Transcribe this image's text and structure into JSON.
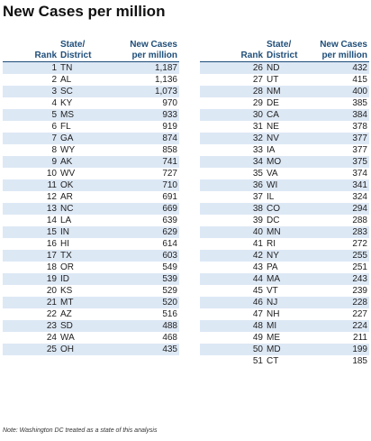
{
  "title": "New Cases per million",
  "headers": {
    "rank": "Rank",
    "state_line1": "State/",
    "state_line2": "District",
    "value_line1": "New Cases",
    "value_line2": "per million"
  },
  "left_rows": [
    {
      "rank": "1",
      "state": "TN",
      "value": "1,187"
    },
    {
      "rank": "2",
      "state": "AL",
      "value": "1,136"
    },
    {
      "rank": "3",
      "state": "SC",
      "value": "1,073"
    },
    {
      "rank": "4",
      "state": "KY",
      "value": "970"
    },
    {
      "rank": "5",
      "state": "MS",
      "value": "933"
    },
    {
      "rank": "6",
      "state": "FL",
      "value": "919"
    },
    {
      "rank": "7",
      "state": "GA",
      "value": "874"
    },
    {
      "rank": "8",
      "state": "WY",
      "value": "858"
    },
    {
      "rank": "9",
      "state": "AK",
      "value": "741"
    },
    {
      "rank": "10",
      "state": "WV",
      "value": "727"
    },
    {
      "rank": "11",
      "state": "OK",
      "value": "710"
    },
    {
      "rank": "12",
      "state": "AR",
      "value": "691"
    },
    {
      "rank": "13",
      "state": "NC",
      "value": "669"
    },
    {
      "rank": "14",
      "state": "LA",
      "value": "639"
    },
    {
      "rank": "15",
      "state": "IN",
      "value": "629"
    },
    {
      "rank": "16",
      "state": "HI",
      "value": "614"
    },
    {
      "rank": "17",
      "state": "TX",
      "value": "603"
    },
    {
      "rank": "18",
      "state": "OR",
      "value": "549"
    },
    {
      "rank": "19",
      "state": "ID",
      "value": "539"
    },
    {
      "rank": "20",
      "state": "KS",
      "value": "529"
    },
    {
      "rank": "21",
      "state": "MT",
      "value": "520"
    },
    {
      "rank": "22",
      "state": "AZ",
      "value": "516"
    },
    {
      "rank": "23",
      "state": "SD",
      "value": "488"
    },
    {
      "rank": "24",
      "state": "WA",
      "value": "468"
    },
    {
      "rank": "25",
      "state": "OH",
      "value": "435"
    }
  ],
  "right_rows": [
    {
      "rank": "26",
      "state": "ND",
      "value": "432"
    },
    {
      "rank": "27",
      "state": "UT",
      "value": "415"
    },
    {
      "rank": "28",
      "state": "NM",
      "value": "400"
    },
    {
      "rank": "29",
      "state": "DE",
      "value": "385"
    },
    {
      "rank": "30",
      "state": "CA",
      "value": "384"
    },
    {
      "rank": "31",
      "state": "NE",
      "value": "378"
    },
    {
      "rank": "32",
      "state": "NV",
      "value": "377"
    },
    {
      "rank": "33",
      "state": "IA",
      "value": "377"
    },
    {
      "rank": "34",
      "state": "MO",
      "value": "375"
    },
    {
      "rank": "35",
      "state": "VA",
      "value": "374"
    },
    {
      "rank": "36",
      "state": "WI",
      "value": "341"
    },
    {
      "rank": "37",
      "state": "IL",
      "value": "324"
    },
    {
      "rank": "38",
      "state": "CO",
      "value": "294"
    },
    {
      "rank": "39",
      "state": "DC",
      "value": "288"
    },
    {
      "rank": "40",
      "state": "MN",
      "value": "283"
    },
    {
      "rank": "41",
      "state": "RI",
      "value": "272"
    },
    {
      "rank": "42",
      "state": "NY",
      "value": "255"
    },
    {
      "rank": "43",
      "state": "PA",
      "value": "251"
    },
    {
      "rank": "44",
      "state": "MA",
      "value": "243"
    },
    {
      "rank": "45",
      "state": "VT",
      "value": "239"
    },
    {
      "rank": "46",
      "state": "NJ",
      "value": "228"
    },
    {
      "rank": "47",
      "state": "NH",
      "value": "227"
    },
    {
      "rank": "48",
      "state": "MI",
      "value": "224"
    },
    {
      "rank": "49",
      "state": "ME",
      "value": "211"
    },
    {
      "rank": "50",
      "state": "MD",
      "value": "199"
    },
    {
      "rank": "51",
      "state": "CT",
      "value": "185"
    }
  ],
  "note": "Note: Washington DC treated as a state of this analysis",
  "colors": {
    "header_text": "#1f4e79",
    "band_fill": "#dde8f5"
  }
}
